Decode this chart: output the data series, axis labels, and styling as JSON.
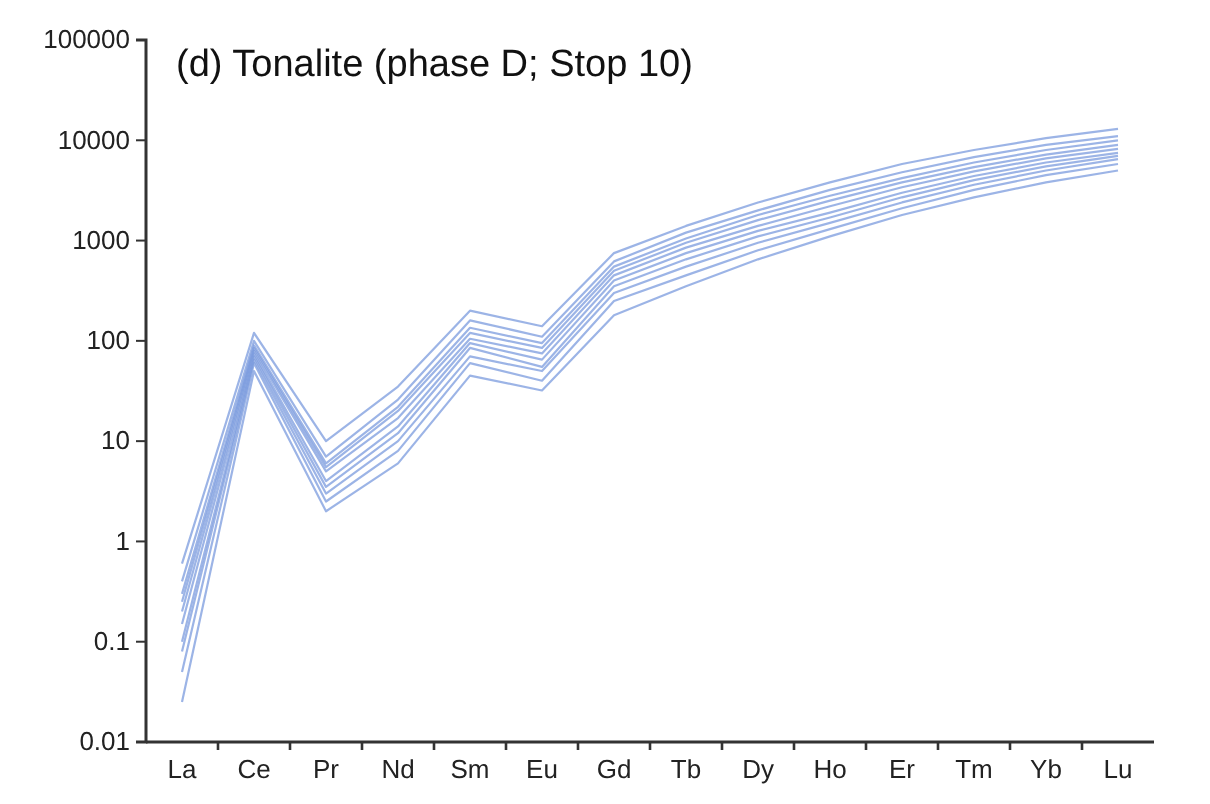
{
  "chart_data": {
    "type": "line",
    "title": "(d) Tonalite (phase D; Stop 10)",
    "categories": [
      "La",
      "Ce",
      "Pr",
      "Nd",
      "Sm",
      "Eu",
      "Gd",
      "Tb",
      "Dy",
      "Ho",
      "Er",
      "Tm",
      "Yb",
      "Lu"
    ],
    "log": "y",
    "ylim": [
      0.01,
      100000
    ],
    "yticks": [
      0.01,
      0.1,
      1,
      10,
      100,
      1000,
      10000,
      100000
    ],
    "grid": false,
    "marker": "none",
    "line_style": "solid",
    "series": [
      {
        "color": "#7b9bde",
        "values": [
          0.025,
          50,
          2,
          6,
          45,
          32,
          180,
          350,
          650,
          1100,
          1800,
          2700,
          3800,
          5000
        ]
      },
      {
        "color": "#7b9bde",
        "values": [
          0.05,
          60,
          2.5,
          8,
          60,
          40,
          250,
          450,
          800,
          1300,
          2100,
          3200,
          4500,
          5800
        ]
      },
      {
        "color": "#7b9bde",
        "values": [
          0.08,
          65,
          3,
          10,
          70,
          50,
          300,
          550,
          950,
          1500,
          2400,
          3600,
          5000,
          6500
        ]
      },
      {
        "color": "#7b9bde",
        "values": [
          0.1,
          70,
          3.5,
          12,
          85,
          55,
          350,
          650,
          1100,
          1700,
          2700,
          4000,
          5500,
          7000
        ]
      },
      {
        "color": "#7b9bde",
        "values": [
          0.15,
          75,
          4,
          14,
          95,
          65,
          400,
          750,
          1250,
          1900,
          3000,
          4400,
          6000,
          7500
        ]
      },
      {
        "color": "#7b9bde",
        "values": [
          0.2,
          80,
          5,
          17,
          105,
          75,
          450,
          850,
          1400,
          2200,
          3400,
          4900,
          6600,
          8200
        ]
      },
      {
        "color": "#7b9bde",
        "values": [
          0.25,
          85,
          5.5,
          20,
          120,
          85,
          500,
          950,
          1600,
          2500,
          3800,
          5400,
          7200,
          9000
        ]
      },
      {
        "color": "#7b9bde",
        "values": [
          0.3,
          90,
          6,
          22,
          135,
          95,
          550,
          1050,
          1800,
          2800,
          4200,
          6000,
          8000,
          10000
        ]
      },
      {
        "color": "#7b9bde",
        "values": [
          0.4,
          100,
          7,
          26,
          160,
          110,
          620,
          1200,
          2000,
          3200,
          4800,
          6800,
          9000,
          11000
        ]
      },
      {
        "color": "#7b9bde",
        "values": [
          0.6,
          120,
          10,
          35,
          200,
          140,
          750,
          1400,
          2400,
          3800,
          5800,
          8000,
          10500,
          13000
        ]
      }
    ]
  }
}
